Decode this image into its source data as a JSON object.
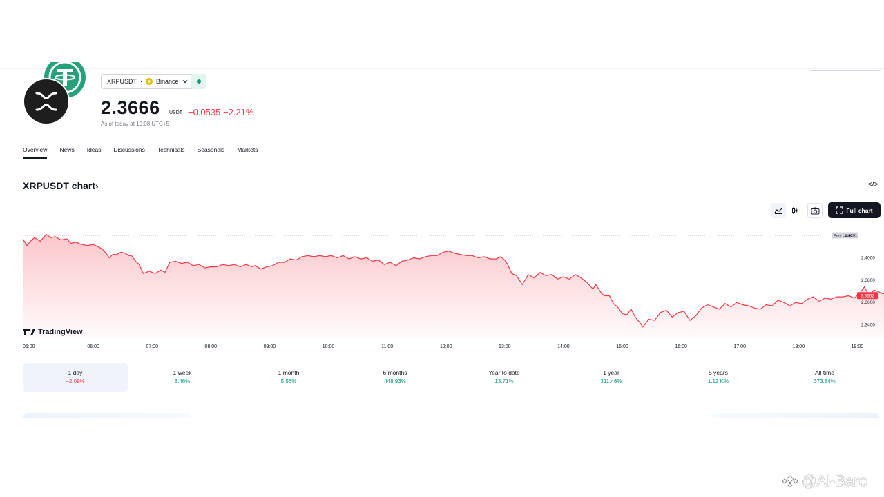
{
  "header": {
    "symbol": "XRPUSDT",
    "separator": "·",
    "exchange": "Binance",
    "price": "2.3666",
    "currency": "USDT",
    "change": "−0.0535",
    "change_percent": "−2.21%",
    "as_of": "As of today at 19:08 UTC+5"
  },
  "tabs": [
    {
      "label": "Overview",
      "active": true
    },
    {
      "label": "News"
    },
    {
      "label": "Ideas"
    },
    {
      "label": "Discussions"
    },
    {
      "label": "Technicals"
    },
    {
      "label": "Seasonals"
    },
    {
      "label": "Markets"
    }
  ],
  "chart_section": {
    "title": "XRPUSDT chart",
    "title_chevron": "›",
    "embed_icon_text": "</>",
    "full_chart_label": "Full chart",
    "branding": "TradingView"
  },
  "chart_data": {
    "type": "area",
    "title": "",
    "xlabel": "",
    "ylabel": "",
    "x_ticks": [
      "05:00",
      "06:00",
      "07:00",
      "08:00",
      "09:00",
      "10:00",
      "11:00",
      "12:00",
      "13:00",
      "14:00",
      "15:00",
      "16:00",
      "17:00",
      "18:00",
      "19:00"
    ],
    "y_ticks": [
      "2.4000",
      "2.3800",
      "2.3600",
      "2.3400"
    ],
    "ylim": [
      2.328,
      2.4269
    ],
    "prev_close": {
      "label": "Prev close",
      "value": "2.4201"
    },
    "last_value": "2.3662",
    "color": "#f23645",
    "grid": false,
    "series": [
      {
        "values": [
          [
            4.8,
            2.417
          ],
          [
            4.87,
            2.411
          ],
          [
            4.95,
            2.416
          ],
          [
            5.0,
            2.418
          ],
          [
            5.1,
            2.415
          ],
          [
            5.2,
            2.421
          ],
          [
            5.28,
            2.418
          ],
          [
            5.35,
            2.419
          ],
          [
            5.45,
            2.416
          ],
          [
            5.55,
            2.417
          ],
          [
            5.62,
            2.413
          ],
          [
            5.7,
            2.414
          ],
          [
            5.8,
            2.412
          ],
          [
            5.9,
            2.411
          ],
          [
            6.0,
            2.412
          ],
          [
            6.08,
            2.41
          ],
          [
            6.15,
            2.408
          ],
          [
            6.22,
            2.404
          ],
          [
            6.27,
            2.4
          ],
          [
            6.33,
            2.403
          ],
          [
            6.4,
            2.403
          ],
          [
            6.47,
            2.405
          ],
          [
            6.55,
            2.404
          ],
          [
            6.6,
            2.402
          ],
          [
            6.65,
            2.402
          ],
          [
            6.72,
            2.397
          ],
          [
            6.78,
            2.394
          ],
          [
            6.85,
            2.386
          ],
          [
            6.95,
            2.388
          ],
          [
            7.05,
            2.386
          ],
          [
            7.15,
            2.389
          ],
          [
            7.22,
            2.387
          ],
          [
            7.3,
            2.396
          ],
          [
            7.4,
            2.397
          ],
          [
            7.5,
            2.395
          ],
          [
            7.6,
            2.396
          ],
          [
            7.7,
            2.393
          ],
          [
            7.8,
            2.394
          ],
          [
            7.9,
            2.391
          ],
          [
            8.0,
            2.392
          ],
          [
            8.1,
            2.392
          ],
          [
            8.2,
            2.394
          ],
          [
            8.3,
            2.393
          ],
          [
            8.4,
            2.394
          ],
          [
            8.5,
            2.392
          ],
          [
            8.6,
            2.394
          ],
          [
            8.7,
            2.392
          ],
          [
            8.75,
            2.393
          ],
          [
            8.85,
            2.39
          ],
          [
            8.95,
            2.392
          ],
          [
            9.05,
            2.393
          ],
          [
            9.15,
            2.396
          ],
          [
            9.25,
            2.396
          ],
          [
            9.35,
            2.399
          ],
          [
            9.45,
            2.398
          ],
          [
            9.55,
            2.401
          ],
          [
            9.65,
            2.402
          ],
          [
            9.75,
            2.401
          ],
          [
            9.85,
            2.402
          ],
          [
            9.95,
            2.401
          ],
          [
            10.05,
            2.402
          ],
          [
            10.15,
            2.4
          ],
          [
            10.25,
            2.402
          ],
          [
            10.35,
            2.399
          ],
          [
            10.45,
            2.401
          ],
          [
            10.55,
            2.399
          ],
          [
            10.65,
            2.4
          ],
          [
            10.75,
            2.397
          ],
          [
            10.85,
            2.398
          ],
          [
            10.95,
            2.394
          ],
          [
            11.05,
            2.396
          ],
          [
            11.15,
            2.393
          ],
          [
            11.25,
            2.397
          ],
          [
            11.35,
            2.398
          ],
          [
            11.45,
            2.4
          ],
          [
            11.55,
            2.399
          ],
          [
            11.65,
            2.401
          ],
          [
            11.75,
            2.402
          ],
          [
            11.85,
            2.402
          ],
          [
            11.95,
            2.405
          ],
          [
            12.05,
            2.406
          ],
          [
            12.15,
            2.404
          ],
          [
            12.25,
            2.403
          ],
          [
            12.35,
            2.402
          ],
          [
            12.45,
            2.402
          ],
          [
            12.55,
            2.4
          ],
          [
            12.65,
            2.401
          ],
          [
            12.75,
            2.399
          ],
          [
            12.85,
            2.399
          ],
          [
            12.93,
            2.401
          ],
          [
            13.0,
            2.398
          ],
          [
            13.05,
            2.394
          ],
          [
            13.12,
            2.386
          ],
          [
            13.2,
            2.384
          ],
          [
            13.3,
            2.376
          ],
          [
            13.4,
            2.385
          ],
          [
            13.5,
            2.382
          ],
          [
            13.6,
            2.387
          ],
          [
            13.7,
            2.384
          ],
          [
            13.8,
            2.385
          ],
          [
            13.9,
            2.381
          ],
          [
            14.0,
            2.383
          ],
          [
            14.1,
            2.381
          ],
          [
            14.2,
            2.385
          ],
          [
            14.3,
            2.382
          ],
          [
            14.4,
            2.378
          ],
          [
            14.5,
            2.372
          ],
          [
            14.55,
            2.376
          ],
          [
            14.65,
            2.368
          ],
          [
            14.7,
            2.366
          ],
          [
            14.78,
            2.366
          ],
          [
            14.85,
            2.359
          ],
          [
            14.92,
            2.356
          ],
          [
            15.0,
            2.35
          ],
          [
            15.08,
            2.349
          ],
          [
            15.15,
            2.354
          ],
          [
            15.22,
            2.347
          ],
          [
            15.3,
            2.342
          ],
          [
            15.35,
            2.338
          ],
          [
            15.45,
            2.345
          ],
          [
            15.55,
            2.344
          ],
          [
            15.65,
            2.351
          ],
          [
            15.75,
            2.353
          ],
          [
            15.85,
            2.347
          ],
          [
            15.95,
            2.351
          ],
          [
            16.05,
            2.352
          ],
          [
            16.15,
            2.344
          ],
          [
            16.25,
            2.348
          ],
          [
            16.35,
            2.355
          ],
          [
            16.45,
            2.358
          ],
          [
            16.55,
            2.356
          ],
          [
            16.65,
            2.354
          ],
          [
            16.75,
            2.359
          ],
          [
            16.85,
            2.356
          ],
          [
            16.95,
            2.36
          ],
          [
            17.05,
            2.358
          ],
          [
            17.15,
            2.357
          ],
          [
            17.25,
            2.355
          ],
          [
            17.35,
            2.354
          ],
          [
            17.45,
            2.358
          ],
          [
            17.55,
            2.357
          ],
          [
            17.65,
            2.362
          ],
          [
            17.75,
            2.36
          ],
          [
            17.85,
            2.357
          ],
          [
            17.95,
            2.36
          ],
          [
            18.05,
            2.359
          ],
          [
            18.15,
            2.363
          ],
          [
            18.25,
            2.365
          ],
          [
            18.35,
            2.361
          ],
          [
            18.45,
            2.364
          ],
          [
            18.55,
            2.363
          ],
          [
            18.65,
            2.365
          ],
          [
            18.75,
            2.365
          ],
          [
            18.85,
            2.366
          ],
          [
            18.95,
            2.364
          ],
          [
            19.05,
            2.369
          ],
          [
            19.12,
            2.374
          ],
          [
            19.2,
            2.366
          ],
          [
            19.28,
            2.371
          ],
          [
            19.35,
            2.37
          ],
          [
            19.42,
            2.368
          ],
          [
            19.5,
            2.368
          ],
          [
            19.58,
            2.366
          ],
          [
            19.65,
            2.364
          ],
          [
            19.72,
            2.366
          ],
          [
            19.78,
            2.366
          ],
          [
            19.85,
            2.371
          ],
          [
            19.92,
            2.366
          ],
          [
            20.0,
            2.366
          ],
          [
            20.05,
            2.3662
          ]
        ]
      }
    ]
  },
  "periods": [
    {
      "label": "1 day",
      "value": "−2.09%",
      "dir": "neg",
      "active": true
    },
    {
      "label": "1 week",
      "value": "8.46%",
      "dir": "pos"
    },
    {
      "label": "1 month",
      "value": "5.56%",
      "dir": "pos"
    },
    {
      "label": "6 months",
      "value": "448.93%",
      "dir": "pos"
    },
    {
      "label": "Year to date",
      "value": "13.71%",
      "dir": "pos"
    },
    {
      "label": "1 year",
      "value": "311.46%",
      "dir": "pos"
    },
    {
      "label": "5 years",
      "value": "1.12 K%",
      "dir": "pos"
    },
    {
      "label": "All time",
      "value": "373.84%",
      "dir": "pos"
    }
  ],
  "watermark": "@Al-Baro",
  "colors": {
    "accent_negative": "#f23645",
    "accent_positive": "#089981",
    "tether": "#26a17b",
    "binance": "#f0b90b",
    "xrp_bg": "#1e1e1e"
  },
  "icons": {
    "xrp": "xrp-logo-icon",
    "tether": "tether-logo-icon",
    "binance": "binance-icon",
    "area_chart": "area-chart-icon",
    "candles": "candles-icon",
    "camera": "camera-icon",
    "expand": "expand-icon"
  }
}
